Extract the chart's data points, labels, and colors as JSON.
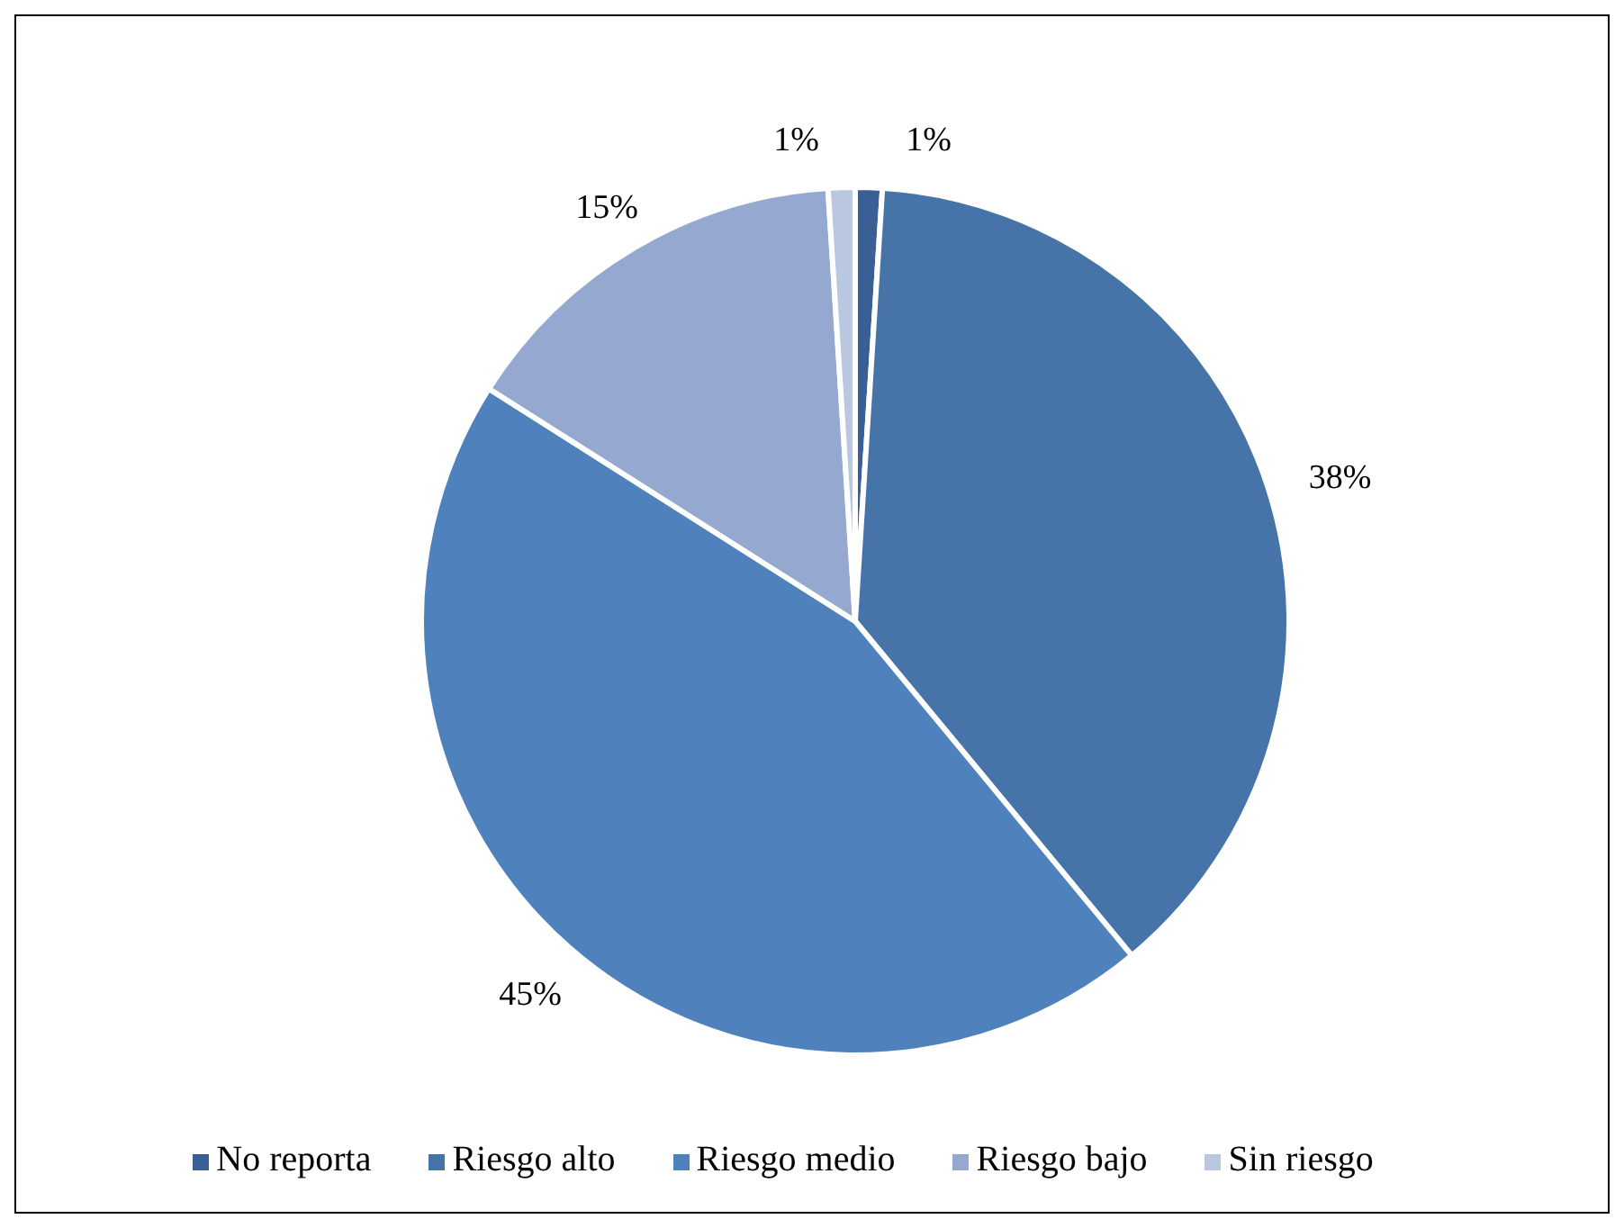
{
  "chart_data": {
    "type": "pie",
    "categories": [
      "No reporta",
      "Riesgo alto",
      "Riesgo medio",
      "Riesgo bajo",
      "Sin riesgo"
    ],
    "values": [
      1,
      38,
      45,
      15,
      1
    ],
    "colors": [
      "#3a5f94",
      "#4674a8",
      "#4f81bd",
      "#95a9d0",
      "#b9c7e0"
    ],
    "value_labels": [
      "1%",
      "38%",
      "45%",
      "15%",
      "1%"
    ],
    "legend": "bottom"
  }
}
